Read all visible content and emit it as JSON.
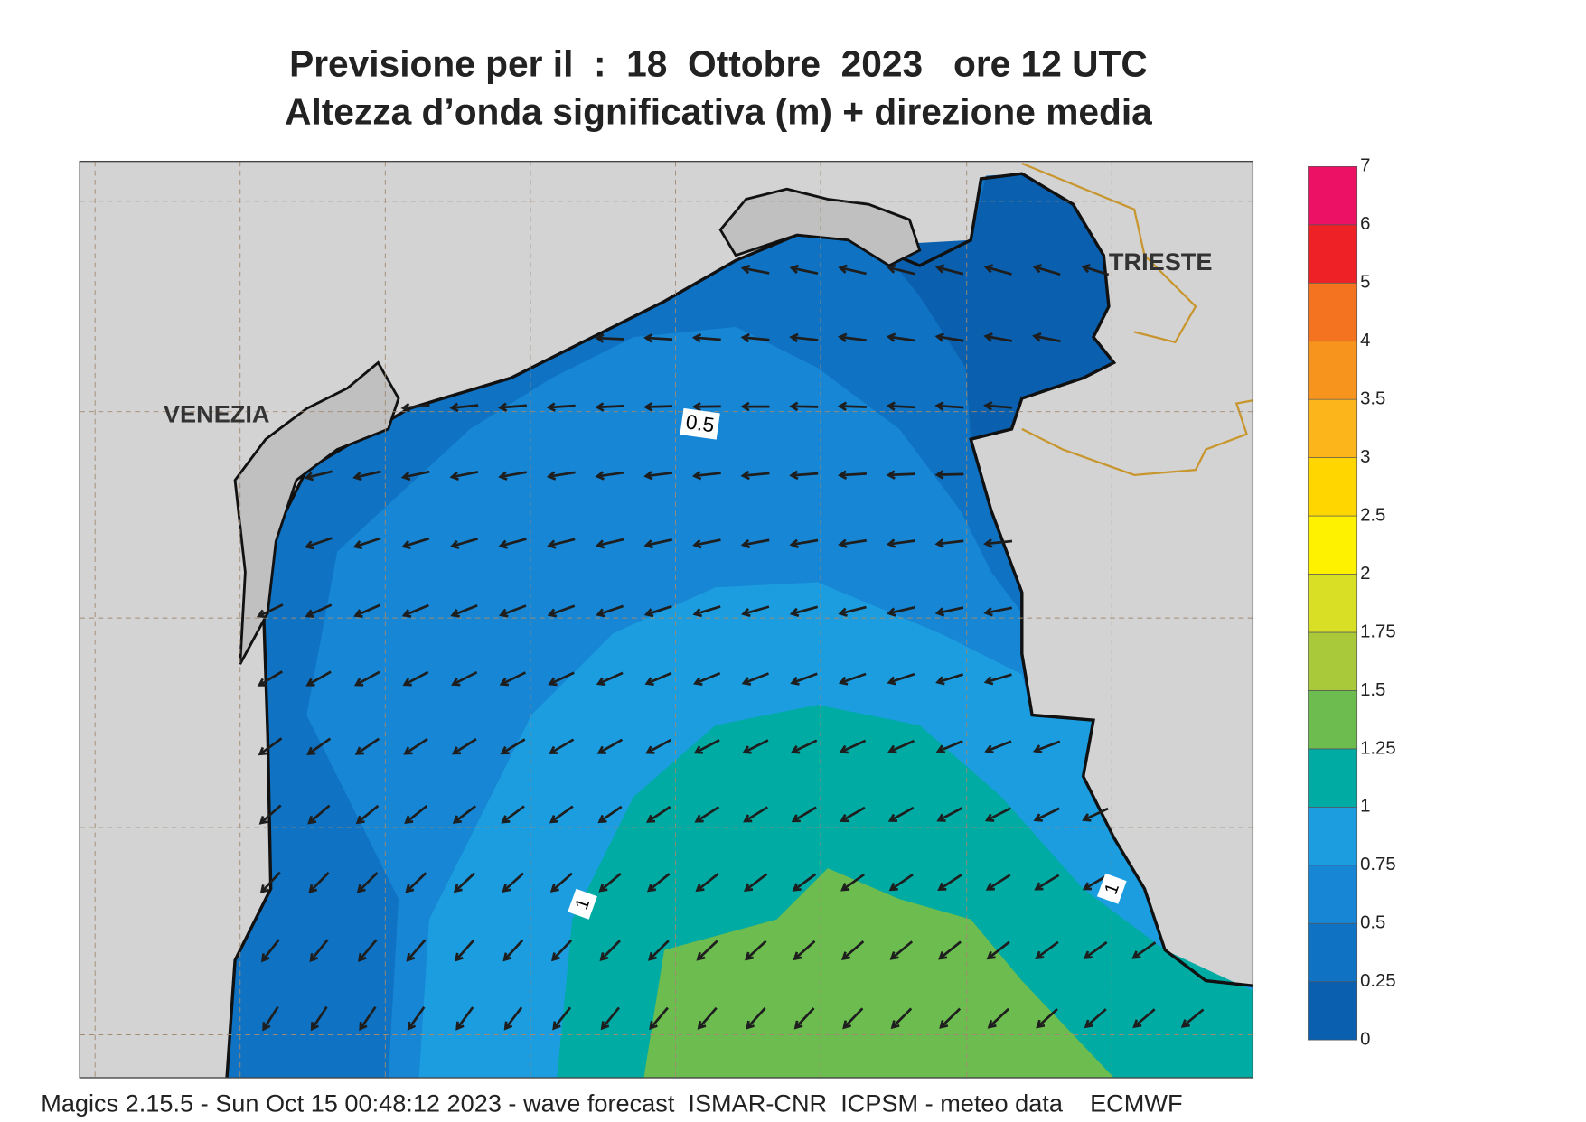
{
  "title": {
    "line1": "Previsione per il  :  18  Ottobre  2023   ore 12 UTC",
    "line2": "Altezza d’onda significativa (m) + direzione media"
  },
  "map": {
    "cities": [
      "VENEZIA",
      "TRIESTE"
    ],
    "contour_labels": [
      "0.5",
      "1",
      "1"
    ]
  },
  "legend": {
    "labels": [
      "0",
      "0.25",
      "0.5",
      "0.75",
      "1",
      "1.25",
      "1.5",
      "1.75",
      "2",
      "2.5",
      "3",
      "3.5",
      "4",
      "5",
      "6",
      "7"
    ],
    "colors": [
      "#0a5fae",
      "#0f72c2",
      "#1786d4",
      "#1c9de0",
      "#00aba4",
      "#6cbc4f",
      "#a9c93a",
      "#d8df25",
      "#fff200",
      "#ffd600",
      "#fcb61b",
      "#f7941d",
      "#f37321",
      "#ee2226",
      "#ec1164"
    ]
  },
  "footer": "Magics 2.15.5 - Sun Oct 15 00:48:12 2023 - wave forecast  ISMAR-CNR  ICPSM - meteo data    ECMWF"
}
